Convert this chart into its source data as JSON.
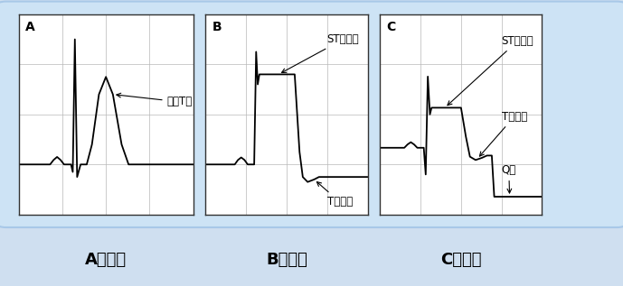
{
  "background_outer": "#cfdff0",
  "background_inner": "#dce9f5",
  "panel_bg": "#ffffff",
  "grid_color": "#b8b8b8",
  "line_color": "#000000",
  "label_A": "A",
  "label_B": "B",
  "label_C": "C",
  "text_A": "高尖T波",
  "text_B1": "ST段抬高",
  "text_B2": "T波倒置",
  "text_C1": "ST段抬高",
  "text_C2": "T波倒置",
  "text_C3": "Q波",
  "title_A": "A超急期",
  "title_B": "B进展期",
  "title_C": "C确定期",
  "title_fontsize": 13,
  "label_fontsize": 10,
  "annot_fontsize": 8.5
}
